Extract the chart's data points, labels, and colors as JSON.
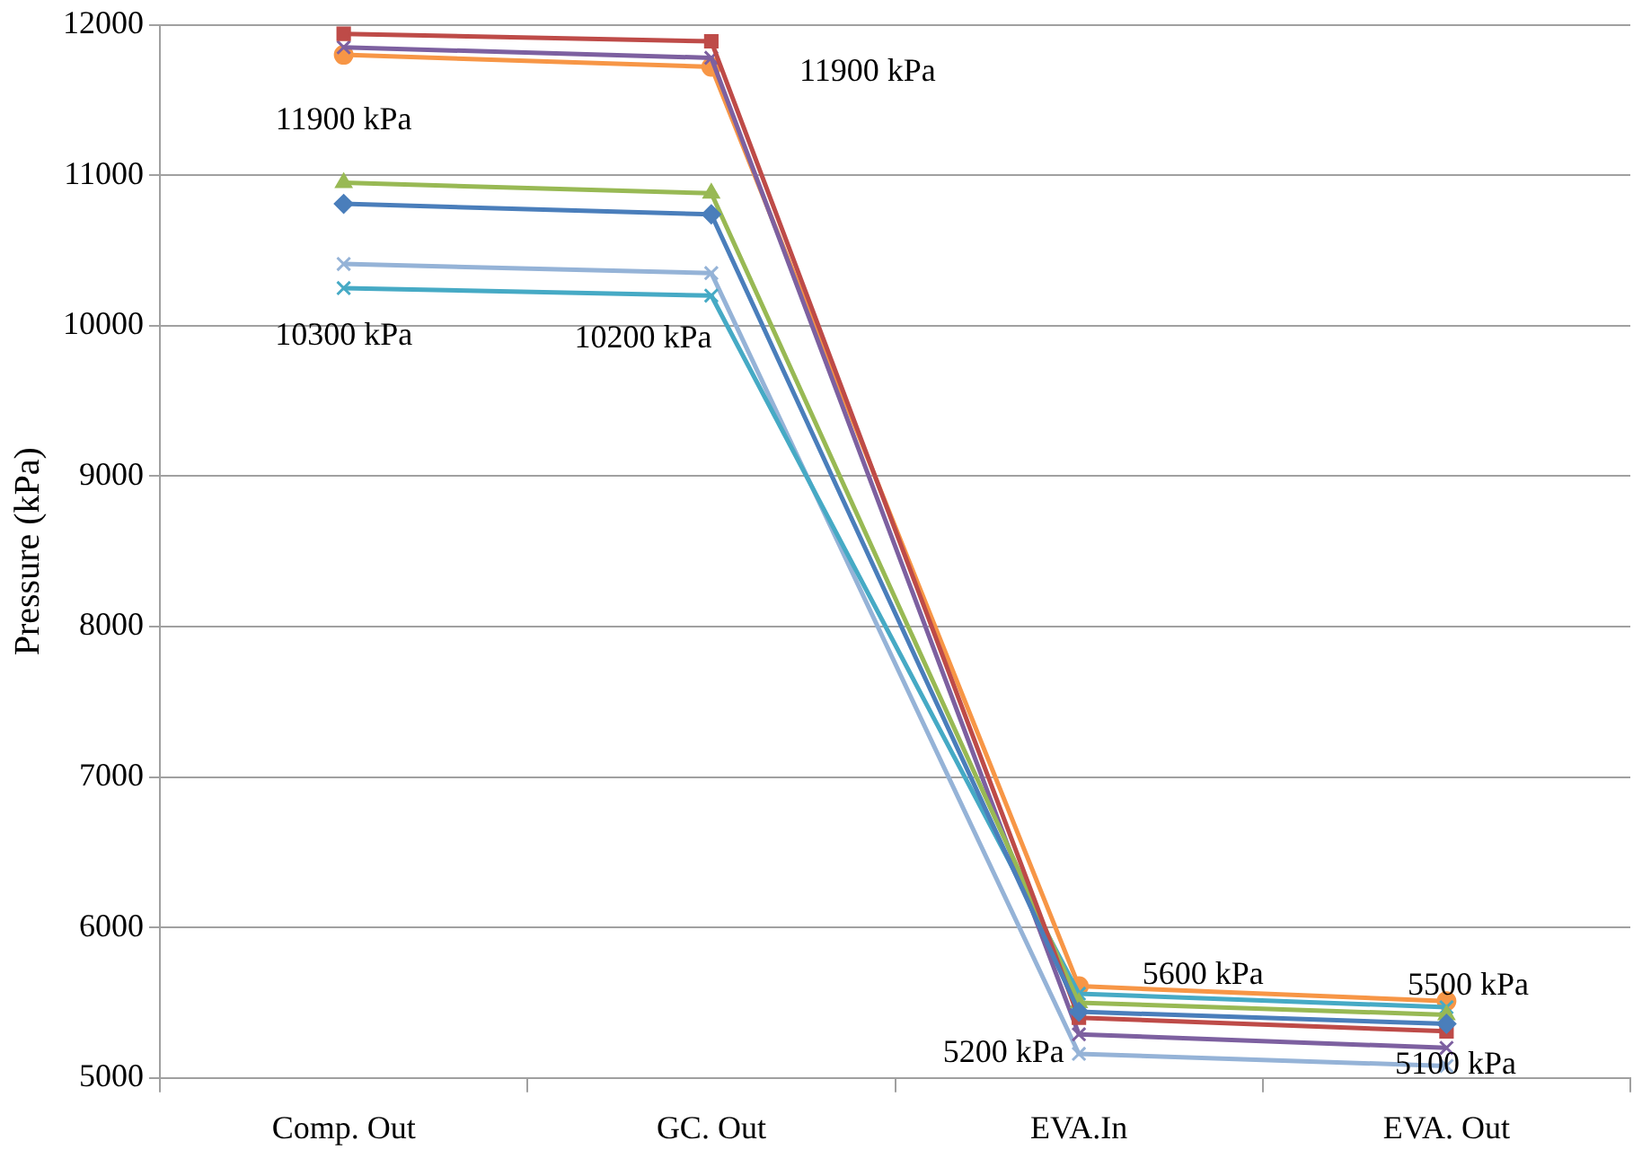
{
  "chart_data": {
    "type": "line",
    "ylabel": "Pressure (kPa)",
    "categories": [
      "Comp. Out",
      "GC. Out",
      "EVA.In",
      "EVA. Out"
    ],
    "ylim": [
      5000,
      12000
    ],
    "yticks": [
      5000,
      6000,
      7000,
      8000,
      9000,
      10000,
      11000,
      12000
    ],
    "grid": "y",
    "legend": false,
    "line_style": "solid",
    "series": [
      {
        "color": "#4a7ebb",
        "marker": "diamond",
        "values": [
          10810,
          10740,
          5440,
          5360
        ]
      },
      {
        "color": "#be4b48",
        "marker": "square",
        "values": [
          11940,
          11890,
          5400,
          5310
        ]
      },
      {
        "color": "#98b954",
        "marker": "triangle",
        "values": [
          10950,
          10880,
          5500,
          5420
        ]
      },
      {
        "color": "#7d60a0",
        "marker": "cross",
        "values": [
          11850,
          11780,
          5290,
          5200
        ]
      },
      {
        "color": "#46aac5",
        "marker": "cross",
        "values": [
          10250,
          10200,
          5560,
          5470
        ]
      },
      {
        "color": "#f79646",
        "marker": "circle",
        "values": [
          11800,
          11720,
          5610,
          5510
        ]
      },
      {
        "color": "#95b3d7",
        "marker": "cross",
        "values": [
          10410,
          10350,
          5160,
          5080
        ]
      }
    ],
    "annotations": [
      {
        "text": "11900 kPa",
        "x": "Comp. Out",
        "y": 11900
      },
      {
        "text": "11900 kPa",
        "x": "GC. Out",
        "y": 11900
      },
      {
        "text": "10300 kPa",
        "x": "Comp. Out",
        "y": 10300
      },
      {
        "text": "10200 kPa",
        "x": "GC. Out",
        "y": 10200
      },
      {
        "text": "5600 kPa",
        "x": "EVA.In",
        "y": 5600
      },
      {
        "text": "5200 kPa",
        "x": "EVA.In",
        "y": 5200
      },
      {
        "text": "5500 kPa",
        "x": "EVA. Out",
        "y": 5500
      },
      {
        "text": "5100 kPa",
        "x": "EVA. Out",
        "y": 5100
      }
    ]
  }
}
